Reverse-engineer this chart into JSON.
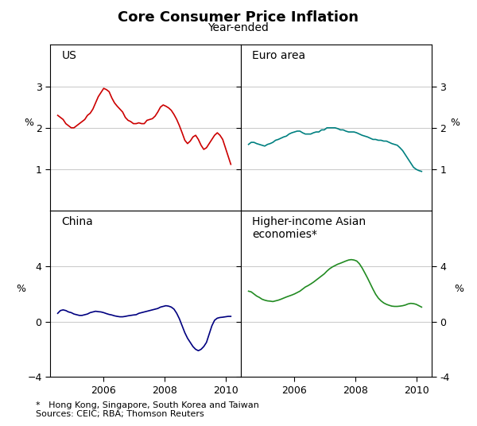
{
  "title": "Core Consumer Price Inflation",
  "subtitle": "Year-ended",
  "footnote1": "*   Hong Kong, Singapore, South Korea and Taiwan",
  "footnote2": "Sources: CEIC; RBA; Thomson Reuters",
  "panels": [
    {
      "label": "US",
      "color": "#cc0000",
      "ylim": [
        0,
        4
      ],
      "yticks": [
        1,
        2,
        3
      ],
      "data": [
        2.3,
        2.25,
        2.2,
        2.1,
        2.05,
        2.0,
        2.0,
        2.05,
        2.1,
        2.15,
        2.2,
        2.3,
        2.35,
        2.45,
        2.6,
        2.75,
        2.85,
        2.95,
        2.92,
        2.87,
        2.72,
        2.6,
        2.52,
        2.45,
        2.38,
        2.25,
        2.18,
        2.15,
        2.1,
        2.1,
        2.12,
        2.1,
        2.1,
        2.18,
        2.2,
        2.22,
        2.28,
        2.38,
        2.5,
        2.55,
        2.52,
        2.48,
        2.42,
        2.32,
        2.2,
        2.05,
        1.88,
        1.7,
        1.62,
        1.68,
        1.78,
        1.82,
        1.72,
        1.58,
        1.48,
        1.52,
        1.62,
        1.72,
        1.82,
        1.88,
        1.82,
        1.72,
        1.52,
        1.32,
        1.12
      ]
    },
    {
      "label": "Euro area",
      "color": "#008080",
      "ylim": [
        0,
        4
      ],
      "yticks": [
        1,
        2,
        3
      ],
      "data": [
        1.6,
        1.65,
        1.65,
        1.62,
        1.6,
        1.58,
        1.56,
        1.6,
        1.62,
        1.65,
        1.7,
        1.72,
        1.75,
        1.78,
        1.8,
        1.85,
        1.88,
        1.9,
        1.92,
        1.92,
        1.88,
        1.85,
        1.85,
        1.85,
        1.88,
        1.9,
        1.9,
        1.95,
        1.95,
        2.0,
        2.0,
        2.0,
        2.0,
        1.98,
        1.95,
        1.95,
        1.92,
        1.9,
        1.9,
        1.9,
        1.88,
        1.85,
        1.82,
        1.8,
        1.78,
        1.75,
        1.72,
        1.72,
        1.7,
        1.7,
        1.68,
        1.68,
        1.65,
        1.62,
        1.6,
        1.58,
        1.52,
        1.45,
        1.35,
        1.25,
        1.15,
        1.05,
        1.0,
        0.97,
        0.95
      ]
    },
    {
      "label": "China",
      "color": "#000080",
      "ylim": [
        -4,
        8
      ],
      "yticks": [
        -4,
        0,
        4
      ],
      "data": [
        0.6,
        0.8,
        0.85,
        0.8,
        0.7,
        0.65,
        0.55,
        0.5,
        0.45,
        0.45,
        0.5,
        0.55,
        0.65,
        0.7,
        0.75,
        0.72,
        0.7,
        0.65,
        0.58,
        0.52,
        0.48,
        0.42,
        0.38,
        0.35,
        0.35,
        0.38,
        0.42,
        0.45,
        0.48,
        0.5,
        0.6,
        0.65,
        0.7,
        0.75,
        0.8,
        0.85,
        0.9,
        0.95,
        1.05,
        1.1,
        1.15,
        1.12,
        1.05,
        0.9,
        0.6,
        0.2,
        -0.3,
        -0.8,
        -1.2,
        -1.5,
        -1.8,
        -2.0,
        -2.1,
        -2.0,
        -1.8,
        -1.5,
        -0.9,
        -0.3,
        0.1,
        0.25,
        0.3,
        0.32,
        0.35,
        0.38,
        0.38
      ]
    },
    {
      "label": "Higher-income Asian\neconomies*",
      "color": "#228B22",
      "ylim": [
        -4,
        8
      ],
      "yticks": [
        -4,
        0,
        4
      ],
      "data": [
        2.2,
        2.15,
        2.0,
        1.85,
        1.75,
        1.62,
        1.55,
        1.5,
        1.48,
        1.45,
        1.5,
        1.55,
        1.62,
        1.7,
        1.78,
        1.85,
        1.92,
        2.0,
        2.1,
        2.2,
        2.35,
        2.5,
        2.6,
        2.72,
        2.85,
        3.0,
        3.15,
        3.3,
        3.45,
        3.65,
        3.82,
        3.95,
        4.05,
        4.15,
        4.22,
        4.3,
        4.38,
        4.45,
        4.48,
        4.45,
        4.38,
        4.18,
        3.88,
        3.52,
        3.15,
        2.75,
        2.35,
        1.98,
        1.7,
        1.5,
        1.35,
        1.25,
        1.18,
        1.12,
        1.1,
        1.1,
        1.12,
        1.15,
        1.2,
        1.28,
        1.32,
        1.3,
        1.25,
        1.15,
        1.05
      ]
    }
  ],
  "x_start": 2004.5,
  "x_end": 2010.17,
  "xlim": [
    2004.25,
    2010.5
  ],
  "xticks": [
    2006,
    2008,
    2010
  ],
  "xticklabels": [
    "2006",
    "2008",
    "2010"
  ],
  "bg_color": "white",
  "grid_color": "#cccccc",
  "spine_color": "black",
  "title_fontsize": 13,
  "subtitle_fontsize": 10,
  "label_fontsize": 10,
  "tick_fontsize": 9,
  "footnote_fontsize": 8
}
